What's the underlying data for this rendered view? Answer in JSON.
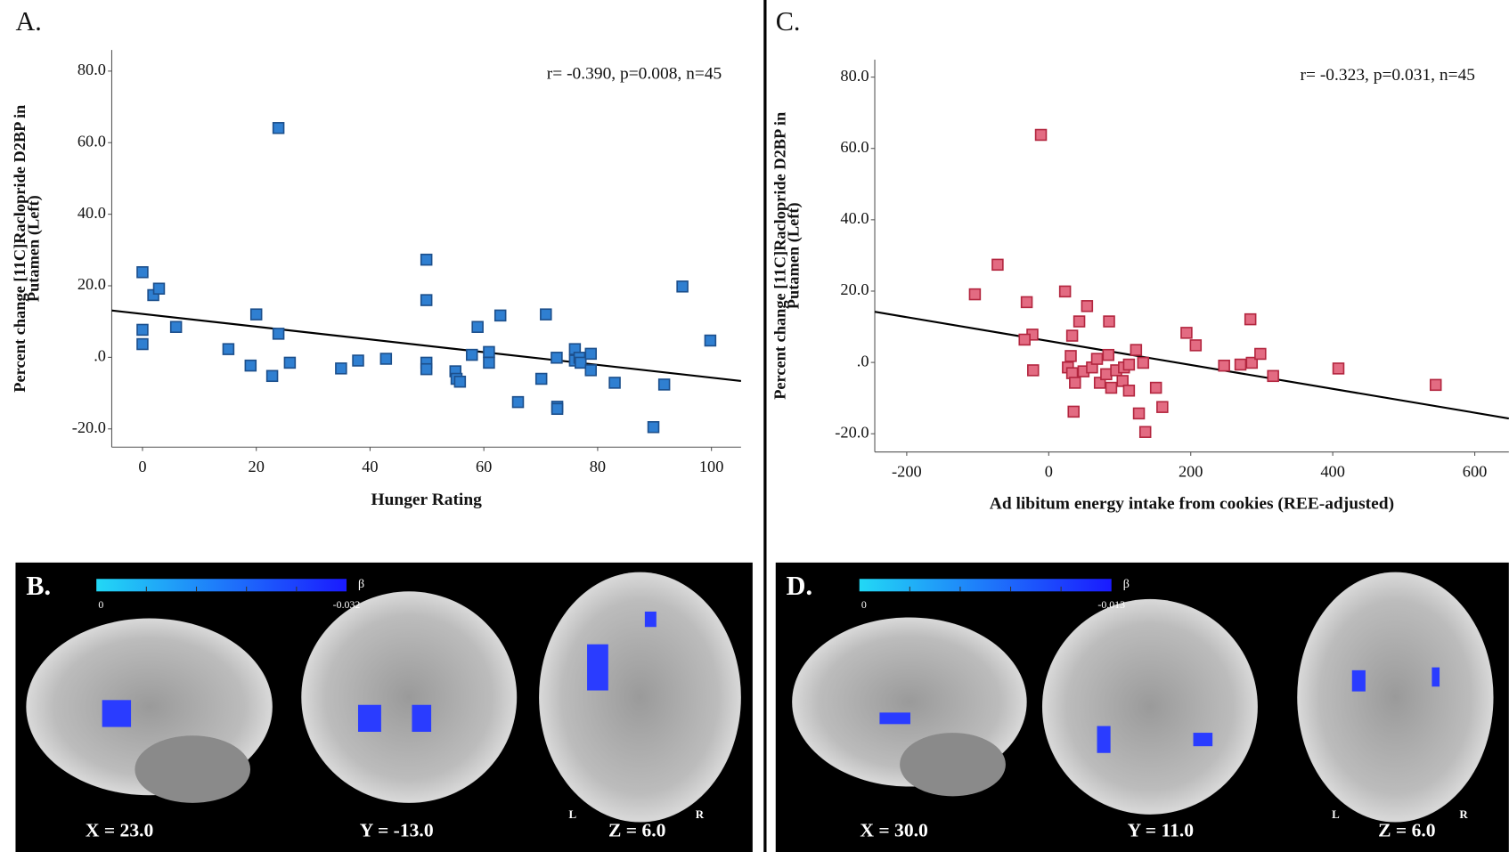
{
  "chart_data": [
    {
      "type": "scatter",
      "panel_label": "A.",
      "annotation": "r= -0.390, p=0.008, n=45",
      "xlabel": "Hunger Rating",
      "ylabel": [
        "Percent change [11C]Raclopride D2BP in",
        "Putamen (Left)"
      ],
      "xlim": [
        -5.4,
        105.2
      ],
      "ylim": [
        -25.1,
        85.9
      ],
      "xticks": [
        0,
        20,
        40,
        60,
        80,
        100
      ],
      "yticks": [
        {
          "value": -20,
          "label": "-20.0"
        },
        {
          "value": 0,
          "label": ".0"
        },
        {
          "value": 20,
          "label": "20.0"
        },
        {
          "value": 40,
          "label": "40.0"
        },
        {
          "value": 60,
          "label": "60.0"
        },
        {
          "value": 80,
          "label": "80.0"
        }
      ],
      "color": "#2f7fd1",
      "edgecolor": "#1c4f8c",
      "x": [
        0,
        0,
        0,
        1.9,
        2.9,
        5.9,
        15.1,
        19.0,
        20.0,
        22.8,
        23.9,
        23.9,
        25.9,
        34.9,
        37.9,
        42.8,
        49.9,
        49.9,
        49.9,
        49.9,
        55.0,
        55.2,
        55.8,
        57.9,
        58.9,
        60.9,
        60.9,
        62.9,
        66.0,
        70.1,
        70.9,
        72.8,
        72.9,
        72.9,
        76.0,
        76.0,
        76.8,
        77.0,
        78.8,
        78.8,
        83.0,
        89.8,
        91.7,
        94.9,
        99.8
      ],
      "values": [
        23.8,
        7.7,
        3.7,
        17.4,
        19.2,
        8.5,
        2.3,
        -2.3,
        12.0,
        -5.2,
        64.1,
        6.6,
        -1.5,
        -3.1,
        -0.9,
        -0.4,
        27.3,
        16.0,
        -1.5,
        -3.3,
        -3.9,
        -6.0,
        -6.8,
        0.7,
        8.5,
        1.5,
        -1.5,
        11.7,
        -12.5,
        -6.0,
        12.0,
        -0.1,
        -13.8,
        -14.4,
        2.3,
        -0.9,
        -0.1,
        -1.5,
        1.0,
        -3.6,
        -7.1,
        -19.5,
        -7.6,
        19.8,
        4.7
      ],
      "fit_line": {
        "x": [
          -5.4,
          105.2
        ],
        "y": [
          13.1,
          -6.6
        ]
      }
    },
    {
      "type": "scatter",
      "panel_label": "C.",
      "annotation": "r= -0.323, p=0.031, n=45",
      "xlabel": "Ad libitum energy intake from cookies (REE-adjusted)",
      "ylabel": [
        "Percent change [11C]Raclopride D2BP in",
        "Putamen (Left)"
      ],
      "xlim": [
        -245,
        648
      ],
      "ylim": [
        -25.1,
        84.9
      ],
      "xticks": [
        -200,
        0,
        200,
        400,
        600
      ],
      "yticks": [
        {
          "value": -20,
          "label": "-20.0"
        },
        {
          "value": 0,
          "label": ".0"
        },
        {
          "value": 20,
          "label": "20.0"
        },
        {
          "value": 40,
          "label": "40.0"
        },
        {
          "value": 60,
          "label": "60.0"
        },
        {
          "value": 80,
          "label": "80.0"
        }
      ],
      "color": "#e36b82",
      "edgecolor": "#b3263f",
      "x": [
        -11,
        -104,
        -72,
        -31,
        -23,
        -34,
        -22,
        23,
        33,
        54,
        43,
        31,
        27,
        33,
        37,
        35,
        49,
        61,
        68,
        72,
        81,
        84,
        85,
        88,
        95,
        104,
        106,
        113,
        113,
        123,
        127,
        133,
        136,
        151,
        160,
        194,
        207,
        247,
        270,
        284,
        286,
        298,
        316,
        408,
        545
      ],
      "values": [
        63.8,
        19.1,
        27.4,
        16.9,
        7.8,
        6.4,
        -2.2,
        19.9,
        7.5,
        15.8,
        11.5,
        1.8,
        -1.4,
        -3.0,
        -5.7,
        -13.8,
        -2.5,
        -1.4,
        1.0,
        -5.7,
        -3.3,
        2.1,
        11.5,
        -7.1,
        -2.2,
        -5.2,
        -1.4,
        -7.9,
        -0.6,
        3.5,
        -14.3,
        -0.1,
        -19.5,
        -7.1,
        -12.5,
        8.3,
        4.8,
        -0.9,
        -0.6,
        12.1,
        -0.1,
        2.4,
        -3.8,
        -1.7,
        -6.3
      ],
      "fit_line": {
        "x": [
          -245,
          648
        ],
        "y": [
          14.2,
          -15.7
        ]
      }
    }
  ],
  "brain_panels": [
    {
      "panel_label": "B.",
      "colorbar": {
        "symbol": "β",
        "min": 0,
        "max": -0.032
      },
      "views": [
        "X = 23.0",
        "Y = -13.0",
        "Z = 6.0"
      ],
      "orientation": [
        "L",
        "R"
      ]
    },
    {
      "panel_label": "D.",
      "colorbar": {
        "symbol": "β",
        "min": 0,
        "max": -0.013
      },
      "views": [
        "X = 30.0",
        "Y = 11.0",
        "Z = 6.0"
      ],
      "orientation": [
        "L",
        "R"
      ]
    }
  ]
}
